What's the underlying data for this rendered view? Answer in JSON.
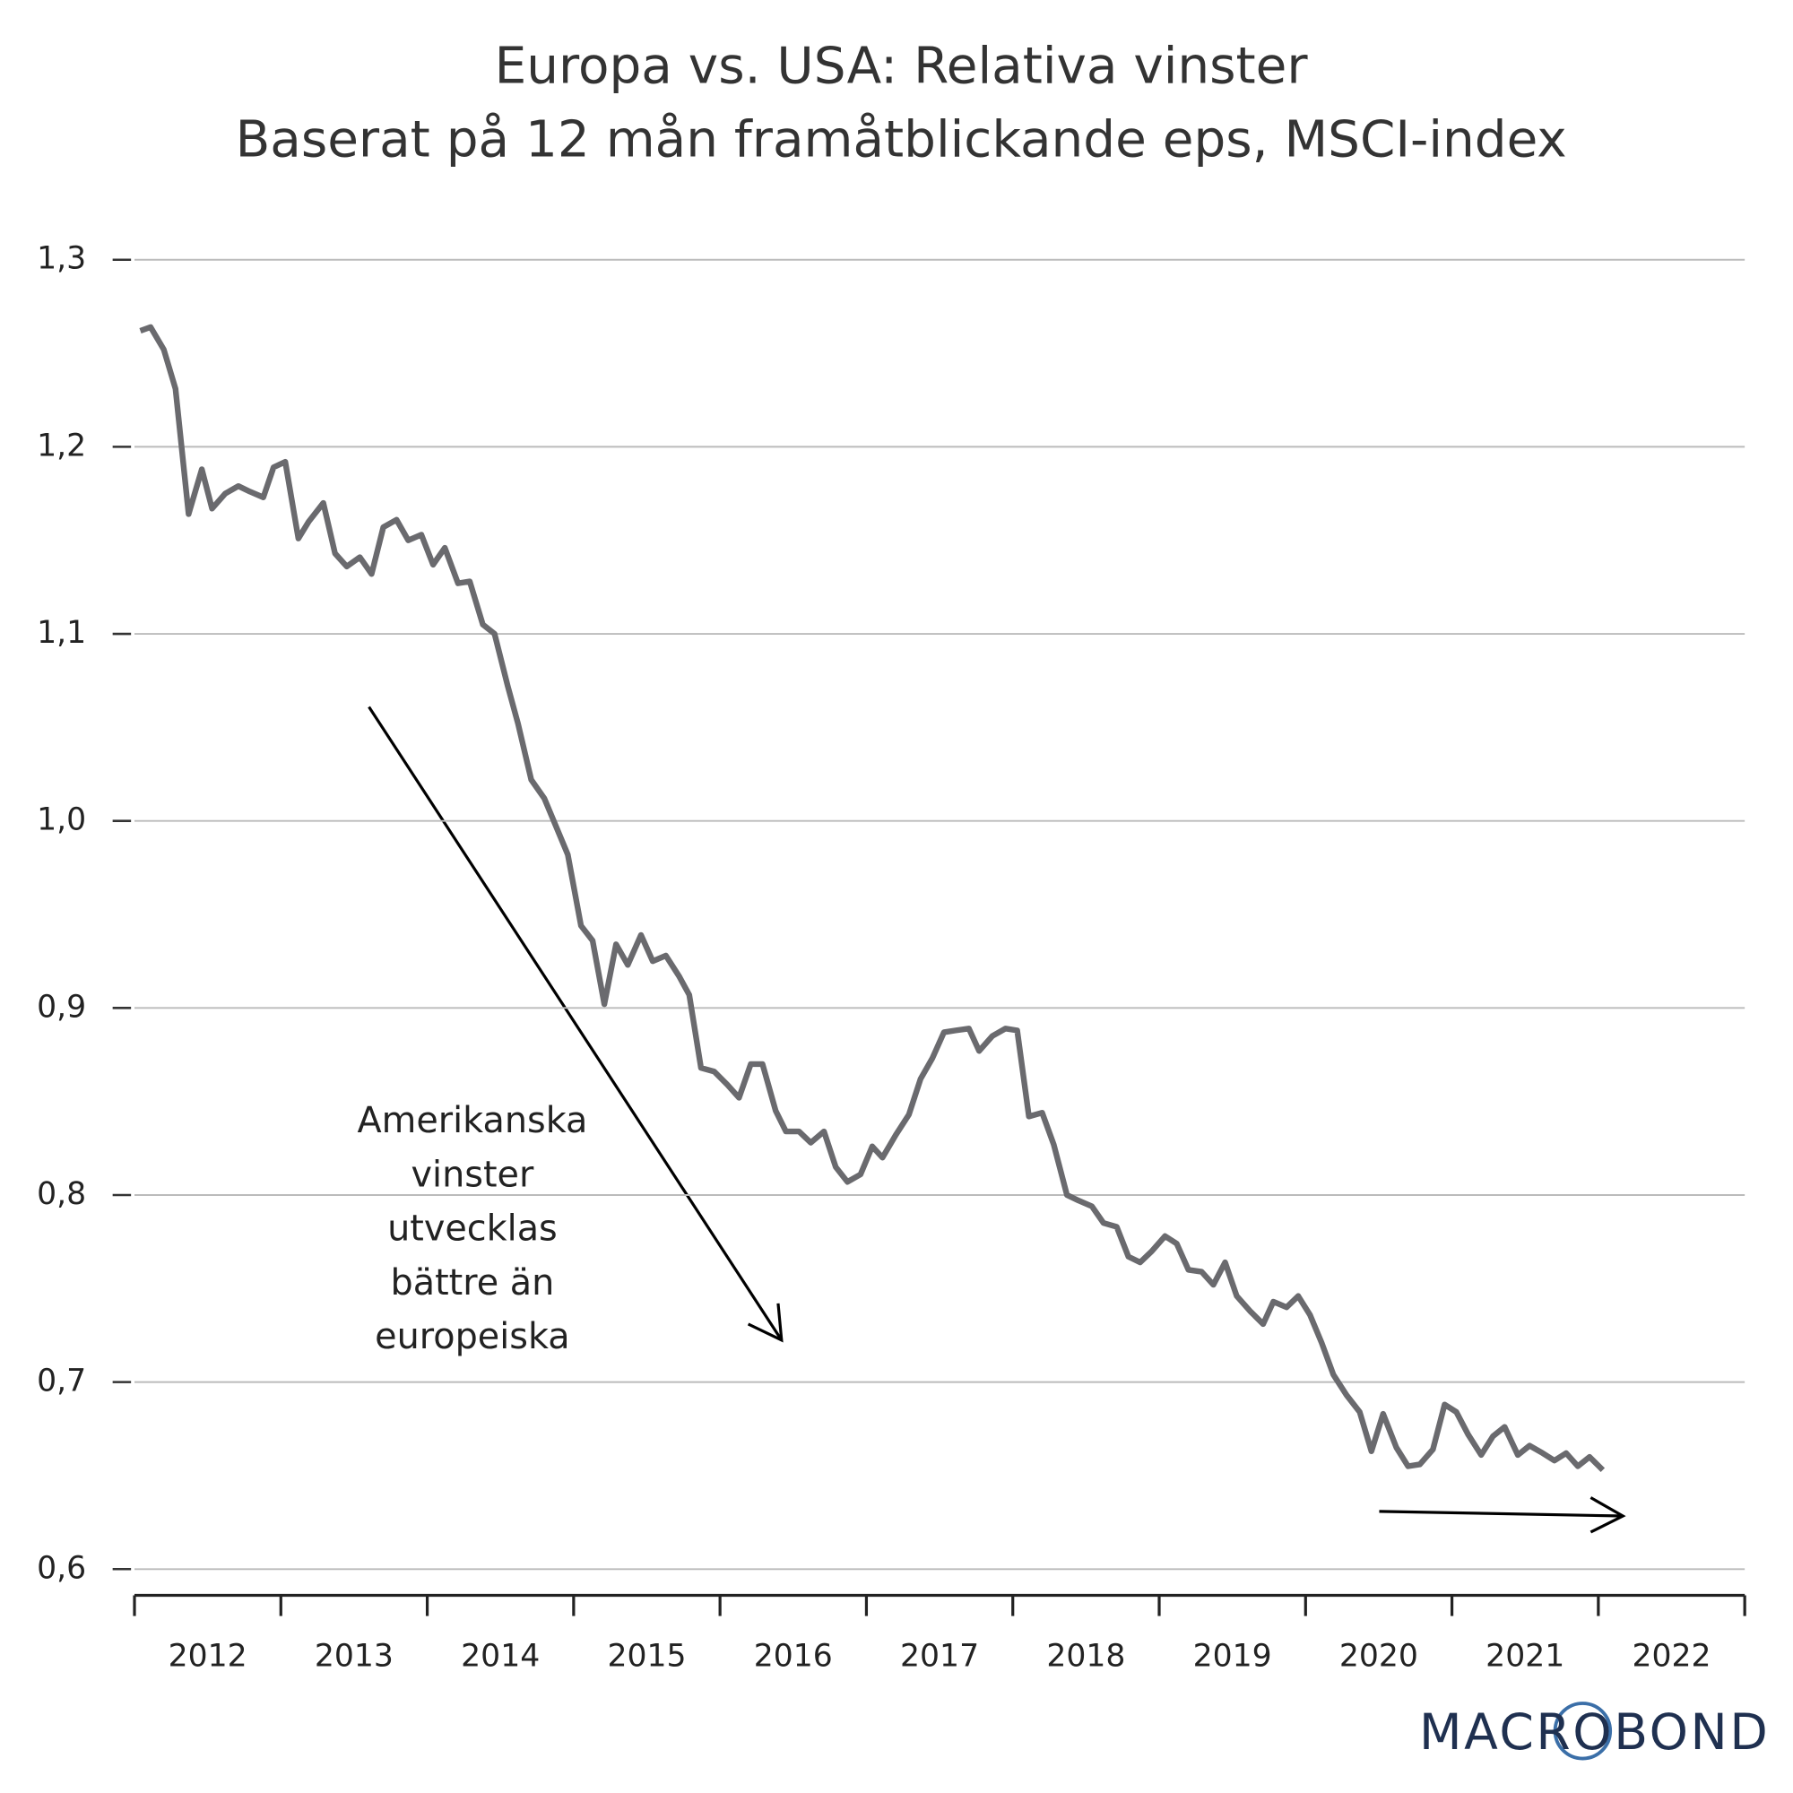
{
  "chart_data": {
    "type": "line",
    "title": "Europa vs. USA: Relativa vinster",
    "subtitle": "Baserat på 12 mån framåtblickande eps, MSCI-index",
    "logo": "MACROBOND",
    "annotation_lines": [
      "Amerikanska",
      "vinster",
      "utvecklas",
      "bättre än",
      "europeiska"
    ],
    "xlim": [
      2012,
      2023
    ],
    "xticks": [
      2012,
      2013,
      2014,
      2015,
      2016,
      2017,
      2018,
      2019,
      2020,
      2021,
      2022,
      2023
    ],
    "x_bands": [
      2012,
      2013,
      2014,
      2015,
      2016,
      2017,
      2018,
      2019,
      2020,
      2021,
      2022
    ],
    "ylim": [
      0.586,
      1.3
    ],
    "yticks": [
      {
        "value": 0.6,
        "label": "0,6"
      },
      {
        "value": 0.7,
        "label": "0,7"
      },
      {
        "value": 0.8,
        "label": "0,8"
      },
      {
        "value": 0.9,
        "label": "0,9"
      },
      {
        "value": 1.0,
        "label": "1,0"
      },
      {
        "value": 1.1,
        "label": "1,1"
      },
      {
        "value": 1.2,
        "label": "1,2"
      },
      {
        "value": 1.3,
        "label": "1,3"
      }
    ],
    "grid": true,
    "series": [
      {
        "name": "Europa vs. USA",
        "color": "#6a6a6e",
        "x": [
          2012.04,
          2012.11,
          2012.2,
          2012.28,
          2012.37,
          2012.46,
          2012.53,
          2012.62,
          2012.71,
          2012.79,
          2012.88,
          2012.95,
          2013.03,
          2013.12,
          2013.19,
          2013.29,
          2013.37,
          2013.45,
          2013.54,
          2013.62,
          2013.7,
          2013.79,
          2013.87,
          2013.96,
          2014.04,
          2014.12,
          2014.21,
          2014.29,
          2014.38,
          2014.46,
          2014.55,
          2014.62,
          2014.71,
          2014.8,
          2014.88,
          2014.96,
          2015.05,
          2015.13,
          2015.21,
          2015.29,
          2015.37,
          2015.46,
          2015.54,
          2015.63,
          2015.72,
          2015.79,
          2015.87,
          2015.96,
          2016.05,
          2016.13,
          2016.21,
          2016.29,
          2016.38,
          2016.45,
          2016.54,
          2016.62,
          2016.71,
          2016.79,
          2016.87,
          2016.96,
          2017.04,
          2017.11,
          2017.2,
          2017.29,
          2017.37,
          2017.45,
          2017.53,
          2017.61,
          2017.7,
          2017.77,
          2017.86,
          2017.95,
          2018.03,
          2018.11,
          2018.2,
          2018.28,
          2018.37,
          2018.45,
          2018.54,
          2018.62,
          2018.71,
          2018.79,
          2018.87,
          2018.95,
          2019.04,
          2019.12,
          2019.2,
          2019.29,
          2019.37,
          2019.45,
          2019.53,
          2019.62,
          2019.71,
          2019.78,
          2019.87,
          2019.95,
          2020.03,
          2020.11,
          2020.19,
          2020.28,
          2020.37,
          2020.45,
          2020.53,
          2020.62,
          2020.7,
          2020.78,
          2020.87,
          2020.95,
          2021.03,
          2021.11,
          2021.2,
          2021.28,
          2021.36,
          2021.45,
          2021.53,
          2021.62,
          2021.7,
          2021.78,
          2021.86,
          2021.94,
          2022.03
        ],
        "values": [
          1.262,
          1.264,
          1.252,
          1.231,
          1.164,
          1.188,
          1.167,
          1.175,
          1.179,
          1.176,
          1.173,
          1.189,
          1.192,
          1.151,
          1.16,
          1.17,
          1.143,
          1.136,
          1.141,
          1.132,
          1.157,
          1.161,
          1.15,
          1.153,
          1.137,
          1.146,
          1.127,
          1.128,
          1.105,
          1.1,
          1.072,
          1.052,
          1.022,
          1.012,
          0.997,
          0.982,
          0.944,
          0.936,
          0.902,
          0.934,
          0.923,
          0.939,
          0.925,
          0.928,
          0.917,
          0.907,
          0.868,
          0.866,
          0.859,
          0.852,
          0.87,
          0.87,
          0.845,
          0.834,
          0.834,
          0.828,
          0.834,
          0.815,
          0.807,
          0.811,
          0.826,
          0.82,
          0.832,
          0.843,
          0.862,
          0.873,
          0.887,
          0.888,
          0.889,
          0.877,
          0.885,
          0.889,
          0.888,
          0.842,
          0.844,
          0.827,
          0.8,
          0.797,
          0.794,
          0.785,
          0.783,
          0.767,
          0.764,
          0.77,
          0.778,
          0.774,
          0.76,
          0.759,
          0.752,
          0.764,
          0.746,
          0.738,
          0.731,
          0.743,
          0.74,
          0.746,
          0.736,
          0.721,
          0.704,
          0.693,
          0.684,
          0.663,
          0.683,
          0.665,
          0.655,
          0.656,
          0.664,
          0.688,
          0.684,
          0.672,
          0.661,
          0.671,
          0.676,
          0.661,
          0.666,
          0.662,
          0.658,
          0.662,
          0.655,
          0.66,
          0.653
        ]
      }
    ]
  }
}
